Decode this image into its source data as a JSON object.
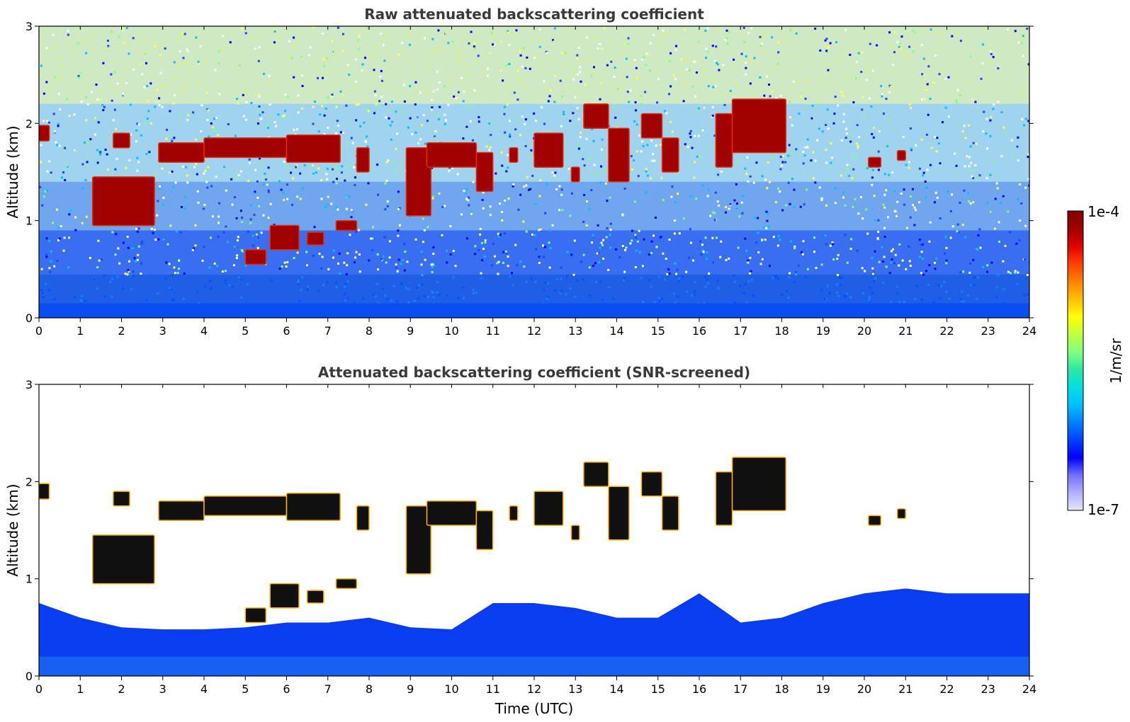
{
  "chart_data": [
    {
      "type": "heatmap",
      "title": "Raw attenuated backscattering coefficient",
      "xlabel": "",
      "ylabel": "Altitude (km)",
      "xlim": [
        0,
        24
      ],
      "ylim": [
        0,
        3
      ],
      "x_ticks": [
        "0",
        "1",
        "2",
        "3",
        "4",
        "5",
        "6",
        "7",
        "8",
        "9",
        "10",
        "11",
        "12",
        "13",
        "14",
        "15",
        "16",
        "17",
        "18",
        "19",
        "20",
        "21",
        "22",
        "23",
        "24"
      ],
      "y_ticks": [
        "0",
        "1",
        "2",
        "3"
      ],
      "background": "noisy",
      "boundary_layer_top_km": 0.45,
      "cloud_features": [
        {
          "x": [
            0.0,
            0.25
          ],
          "y": [
            1.82,
            1.98
          ]
        },
        {
          "x": [
            1.3,
            2.8
          ],
          "y": [
            0.95,
            1.45
          ]
        },
        {
          "x": [
            1.8,
            2.2
          ],
          "y": [
            1.75,
            1.9
          ]
        },
        {
          "x": [
            2.9,
            4.0
          ],
          "y": [
            1.6,
            1.8
          ]
        },
        {
          "x": [
            4.0,
            6.0
          ],
          "y": [
            1.65,
            1.85
          ]
        },
        {
          "x": [
            5.0,
            5.5
          ],
          "y": [
            0.55,
            0.7
          ]
        },
        {
          "x": [
            5.6,
            6.3
          ],
          "y": [
            0.7,
            0.95
          ]
        },
        {
          "x": [
            6.5,
            6.9
          ],
          "y": [
            0.75,
            0.88
          ]
        },
        {
          "x": [
            6.0,
            7.3
          ],
          "y": [
            1.6,
            1.88
          ]
        },
        {
          "x": [
            7.2,
            7.7
          ],
          "y": [
            0.9,
            1.0
          ]
        },
        {
          "x": [
            7.7,
            8.0
          ],
          "y": [
            1.5,
            1.75
          ]
        },
        {
          "x": [
            8.9,
            9.5
          ],
          "y": [
            1.05,
            1.75
          ]
        },
        {
          "x": [
            9.4,
            10.6
          ],
          "y": [
            1.55,
            1.8
          ]
        },
        {
          "x": [
            10.6,
            11.0
          ],
          "y": [
            1.3,
            1.7
          ]
        },
        {
          "x": [
            11.4,
            11.6
          ],
          "y": [
            1.6,
            1.75
          ]
        },
        {
          "x": [
            12.0,
            12.7
          ],
          "y": [
            1.55,
            1.9
          ]
        },
        {
          "x": [
            12.9,
            13.1
          ],
          "y": [
            1.4,
            1.55
          ]
        },
        {
          "x": [
            13.2,
            13.8
          ],
          "y": [
            1.95,
            2.2
          ]
        },
        {
          "x": [
            13.8,
            14.3
          ],
          "y": [
            1.4,
            1.95
          ]
        },
        {
          "x": [
            14.6,
            15.1
          ],
          "y": [
            1.85,
            2.1
          ]
        },
        {
          "x": [
            15.1,
            15.5
          ],
          "y": [
            1.5,
            1.85
          ]
        },
        {
          "x": [
            16.4,
            16.8
          ],
          "y": [
            1.55,
            2.1
          ]
        },
        {
          "x": [
            16.8,
            18.1
          ],
          "y": [
            1.7,
            2.25
          ]
        },
        {
          "x": [
            20.1,
            20.4
          ],
          "y": [
            1.55,
            1.65
          ]
        },
        {
          "x": [
            20.8,
            21.0
          ],
          "y": [
            1.62,
            1.72
          ]
        }
      ]
    },
    {
      "type": "heatmap",
      "title": "Attenuated backscattering coefficient (SNR-screened)",
      "xlabel": "Time (UTC)",
      "ylabel": "Altitude (km)",
      "xlim": [
        0,
        24
      ],
      "ylim": [
        0,
        3
      ],
      "x_ticks": [
        "0",
        "1",
        "2",
        "3",
        "4",
        "5",
        "6",
        "7",
        "8",
        "9",
        "10",
        "11",
        "12",
        "13",
        "14",
        "15",
        "16",
        "17",
        "18",
        "19",
        "20",
        "21",
        "22",
        "23",
        "24"
      ],
      "y_ticks": [
        "0",
        "1",
        "2",
        "3"
      ],
      "background": "screened",
      "boundary_layer_top_km": [
        [
          0,
          0.75
        ],
        [
          1,
          0.6
        ],
        [
          2,
          0.5
        ],
        [
          3,
          0.48
        ],
        [
          4,
          0.48
        ],
        [
          5,
          0.5
        ],
        [
          6,
          0.55
        ],
        [
          7,
          0.55
        ],
        [
          8,
          0.6
        ],
        [
          9,
          0.5
        ],
        [
          10,
          0.48
        ],
        [
          11,
          0.75
        ],
        [
          12,
          0.75
        ],
        [
          13,
          0.7
        ],
        [
          14,
          0.6
        ],
        [
          15,
          0.6
        ],
        [
          16,
          0.85
        ],
        [
          17,
          0.55
        ],
        [
          18,
          0.6
        ],
        [
          19,
          0.75
        ],
        [
          20,
          0.85
        ],
        [
          21,
          0.9
        ],
        [
          22,
          0.85
        ],
        [
          23,
          0.85
        ],
        [
          24,
          0.85
        ]
      ],
      "cloud_features": [
        {
          "x": [
            0.0,
            0.25
          ],
          "y": [
            1.82,
            1.98
          ]
        },
        {
          "x": [
            1.3,
            2.8
          ],
          "y": [
            0.95,
            1.45
          ]
        },
        {
          "x": [
            1.8,
            2.2
          ],
          "y": [
            1.75,
            1.9
          ]
        },
        {
          "x": [
            2.9,
            4.0
          ],
          "y": [
            1.6,
            1.8
          ]
        },
        {
          "x": [
            4.0,
            6.0
          ],
          "y": [
            1.65,
            1.85
          ]
        },
        {
          "x": [
            5.0,
            5.5
          ],
          "y": [
            0.55,
            0.7
          ]
        },
        {
          "x": [
            5.6,
            6.3
          ],
          "y": [
            0.7,
            0.95
          ]
        },
        {
          "x": [
            6.5,
            6.9
          ],
          "y": [
            0.75,
            0.88
          ]
        },
        {
          "x": [
            6.0,
            7.3
          ],
          "y": [
            1.6,
            1.88
          ]
        },
        {
          "x": [
            7.2,
            7.7
          ],
          "y": [
            0.9,
            1.0
          ]
        },
        {
          "x": [
            7.7,
            8.0
          ],
          "y": [
            1.5,
            1.75
          ]
        },
        {
          "x": [
            8.9,
            9.5
          ],
          "y": [
            1.05,
            1.75
          ]
        },
        {
          "x": [
            9.4,
            10.6
          ],
          "y": [
            1.55,
            1.8
          ]
        },
        {
          "x": [
            10.6,
            11.0
          ],
          "y": [
            1.3,
            1.7
          ]
        },
        {
          "x": [
            11.4,
            11.6
          ],
          "y": [
            1.6,
            1.75
          ]
        },
        {
          "x": [
            12.0,
            12.7
          ],
          "y": [
            1.55,
            1.9
          ]
        },
        {
          "x": [
            12.9,
            13.1
          ],
          "y": [
            1.4,
            1.55
          ]
        },
        {
          "x": [
            13.2,
            13.8
          ],
          "y": [
            1.95,
            2.2
          ]
        },
        {
          "x": [
            13.8,
            14.3
          ],
          "y": [
            1.4,
            1.95
          ]
        },
        {
          "x": [
            14.6,
            15.1
          ],
          "y": [
            1.85,
            2.1
          ]
        },
        {
          "x": [
            15.1,
            15.5
          ],
          "y": [
            1.5,
            1.85
          ]
        },
        {
          "x": [
            16.4,
            16.8
          ],
          "y": [
            1.55,
            2.1
          ]
        },
        {
          "x": [
            16.8,
            18.1
          ],
          "y": [
            1.7,
            2.25
          ]
        },
        {
          "x": [
            20.1,
            20.4
          ],
          "y": [
            1.55,
            1.65
          ]
        },
        {
          "x": [
            20.8,
            21.0
          ],
          "y": [
            1.62,
            1.72
          ]
        }
      ]
    }
  ],
  "colorbar": {
    "label": "1/m/sr",
    "max_label": "1e-4",
    "min_label": "1e-7",
    "colors": [
      "#e6e6fa",
      "#b0b0ff",
      "#7070ff",
      "#0000ff",
      "#0040ff",
      "#0080ff",
      "#00c0ff",
      "#00e0e0",
      "#30e8a0",
      "#80ff80",
      "#c0ff40",
      "#ffff00",
      "#ffc000",
      "#ff8000",
      "#ff4000",
      "#e00000",
      "#a00000",
      "#800000"
    ]
  }
}
